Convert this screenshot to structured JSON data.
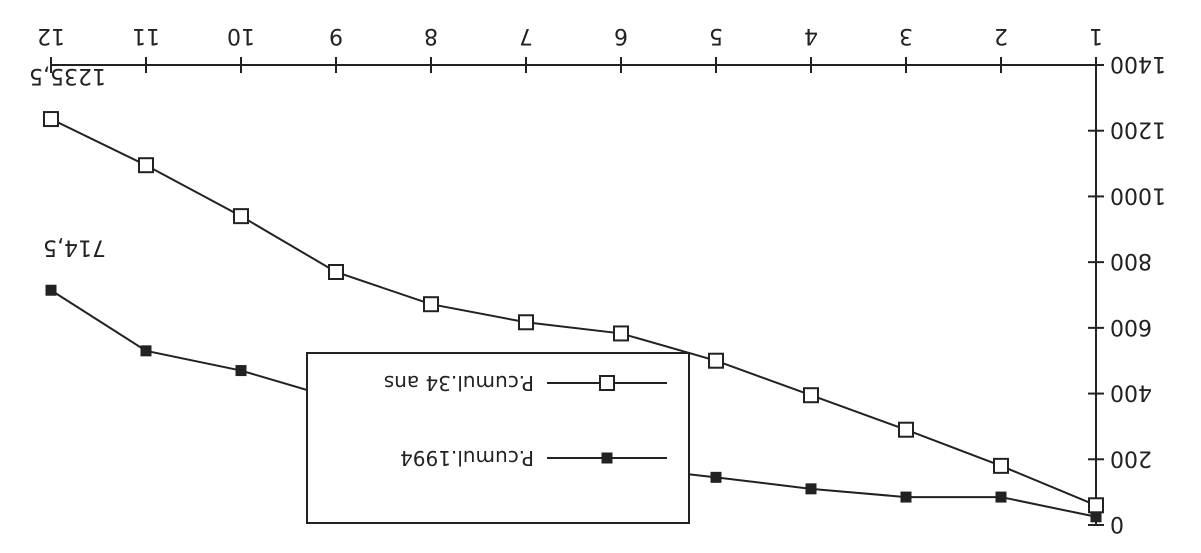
{
  "chart_data": {
    "type": "line",
    "title": "",
    "xlabel": "",
    "ylabel": "",
    "x": [
      1,
      2,
      3,
      4,
      5,
      6,
      7,
      8,
      9,
      10,
      11,
      12
    ],
    "x_tick_labels": [
      "1",
      "2",
      "3",
      "4",
      "5",
      "6",
      "7",
      "8",
      "9",
      "10",
      "11",
      "12"
    ],
    "ylim": [
      0,
      1400
    ],
    "y_ticks": [
      0,
      200,
      400,
      600,
      800,
      1000,
      1200,
      1400
    ],
    "y_tick_labels": [
      "0",
      "200",
      "400",
      "600",
      "800",
      "1000",
      "1200",
      "1400"
    ],
    "y_inverted": true,
    "orientation": "rotated 180 degrees",
    "grid": false,
    "legend_position": "lower-left",
    "series": [
      {
        "name": "P.cumul.1994",
        "marker": "filled-square",
        "values": [
          25,
          85,
          85,
          110,
          145,
          178,
          175,
          178,
          385,
          470,
          530,
          714.5
        ],
        "end_label": "714,5"
      },
      {
        "name": "P.cumul.34 ans",
        "marker": "open-square",
        "values": [
          60,
          180,
          290,
          395,
          500,
          583,
          617,
          672,
          770,
          940,
          1095,
          1235.5
        ],
        "end_label": "1235,5"
      }
    ],
    "colors": {
      "ink": "#222222",
      "background": "#ffffff"
    }
  }
}
